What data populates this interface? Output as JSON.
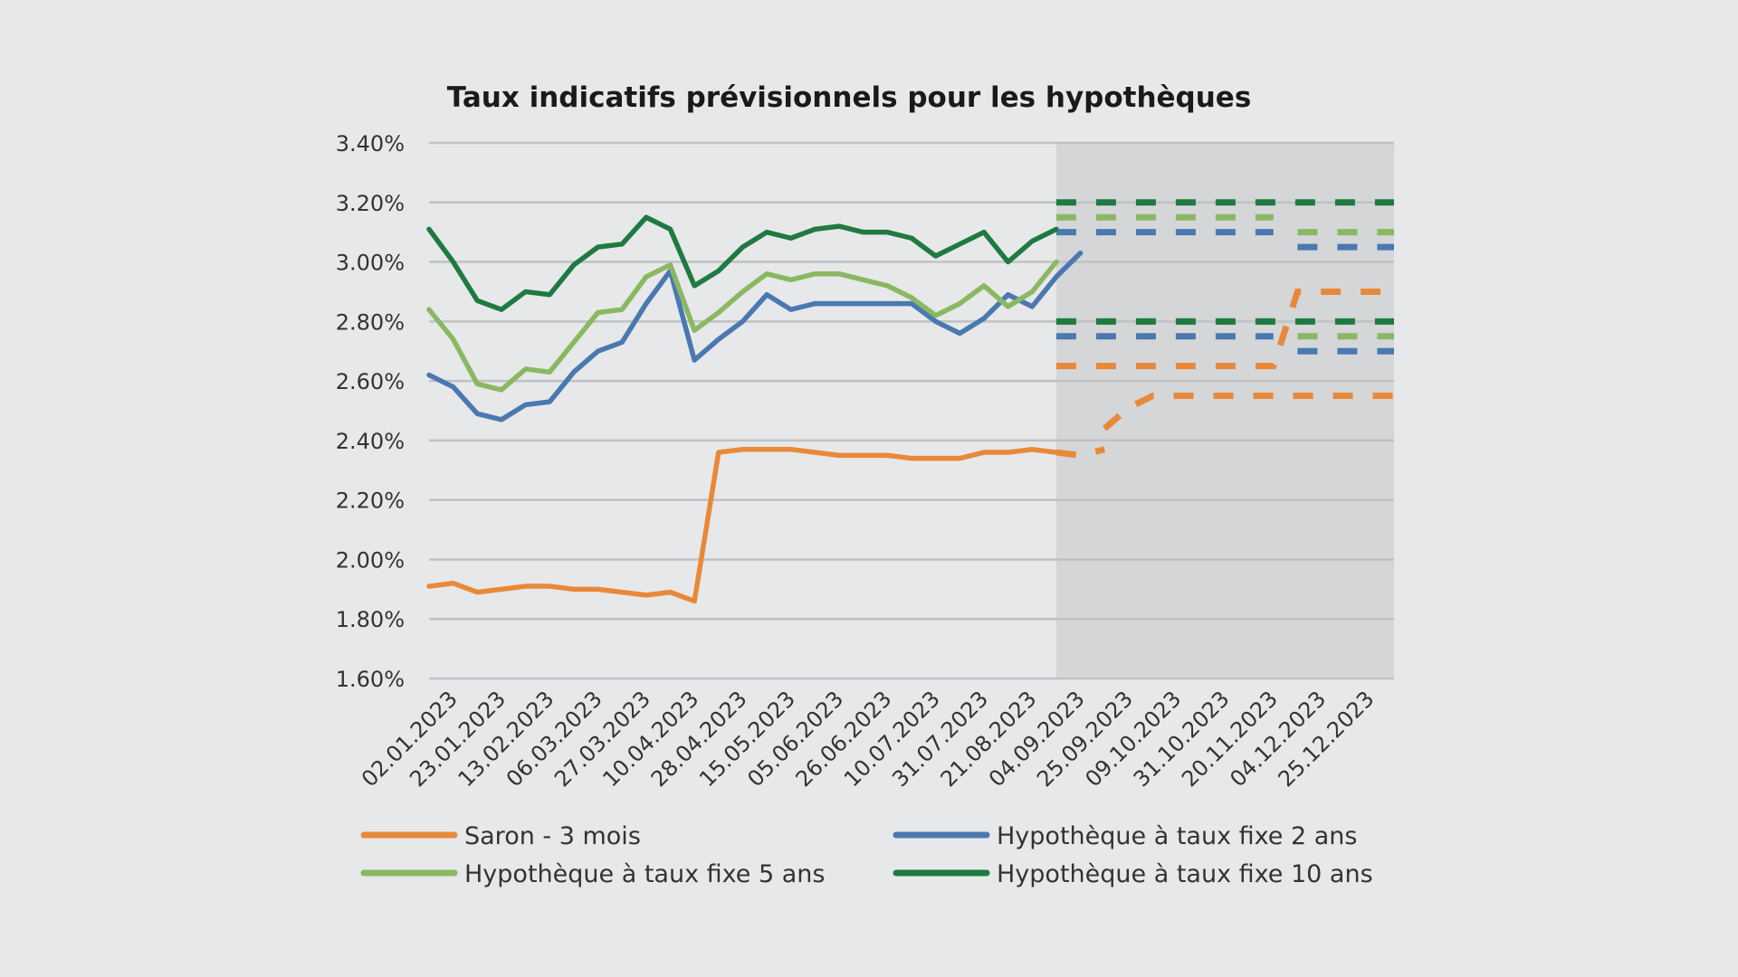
{
  "chart_data": {
    "type": "line",
    "title": "Taux indicatifs prévisionnels pour les hypothèques",
    "xlabel": "",
    "ylabel": "",
    "ylim": [
      1.6,
      3.4
    ],
    "y_ticks": [
      "3.40%",
      "3.20%",
      "3.00%",
      "2.80%",
      "2.60%",
      "2.40%",
      "2.20%",
      "2.00%",
      "1.80%",
      "1.60%"
    ],
    "y_tick_values": [
      3.4,
      3.2,
      3.0,
      2.8,
      2.6,
      2.4,
      2.2,
      2.0,
      1.8,
      1.6
    ],
    "x_ticks": [
      "02.01.2023",
      "23.01.2023",
      "13.02.2023",
      "06.03.2023",
      "27.03.2023",
      "10.04.2023",
      "28.04.2023",
      "15.05.2023",
      "05.06.2023",
      "26.06.2023",
      "10.07.2023",
      "31.07.2023",
      "21.08.2023",
      "04.09.2023",
      "25.09.2023",
      "09.10.2023",
      "31.10.2023",
      "20.11.2023",
      "04.12.2023",
      "25.12.2023"
    ],
    "x_range": [
      0,
      40
    ],
    "forecast_start_index": 20,
    "grid": true,
    "legend_position": "bottom",
    "series": [
      {
        "name": "Saron - 3 mois",
        "color": "#e8893a",
        "values": [
          [
            0,
            1.91
          ],
          [
            1,
            1.92
          ],
          [
            2,
            1.89
          ],
          [
            3,
            1.9
          ],
          [
            4,
            1.91
          ],
          [
            5,
            1.91
          ],
          [
            6,
            1.9
          ],
          [
            7,
            1.9
          ],
          [
            8,
            1.89
          ],
          [
            9,
            1.88
          ],
          [
            10,
            1.89
          ],
          [
            11,
            1.86
          ],
          [
            12,
            2.36
          ],
          [
            13,
            2.37
          ],
          [
            14,
            2.37
          ],
          [
            15,
            2.37
          ],
          [
            16,
            2.36
          ],
          [
            17,
            2.35
          ],
          [
            18,
            2.35
          ],
          [
            19,
            2.35
          ],
          [
            20,
            2.34
          ],
          [
            21,
            2.34
          ],
          [
            22,
            2.34
          ],
          [
            23,
            2.36
          ],
          [
            24,
            2.36
          ],
          [
            25,
            2.37
          ],
          [
            26,
            2.36
          ]
        ],
        "forecast": [
          [
            [
              26,
              2.36
            ],
            [
              27,
              2.35
            ],
            [
              28,
              2.37
            ]
          ],
          [
            [
              28,
              2.44
            ],
            [
              29,
              2.51
            ],
            [
              30,
              2.55
            ],
            [
              40,
              2.55
            ]
          ],
          [
            [
              26,
              2.65
            ],
            [
              35,
              2.65
            ],
            [
              36,
              2.9
            ],
            [
              40,
              2.9
            ]
          ]
        ]
      },
      {
        "name": "Hypothèque à taux fixe 2 ans",
        "color": "#4a78b0",
        "values": [
          [
            0,
            2.62
          ],
          [
            1,
            2.58
          ],
          [
            2,
            2.49
          ],
          [
            3,
            2.47
          ],
          [
            4,
            2.52
          ],
          [
            5,
            2.53
          ],
          [
            6,
            2.63
          ],
          [
            7,
            2.7
          ],
          [
            8,
            2.73
          ],
          [
            9,
            2.86
          ],
          [
            10,
            2.97
          ],
          [
            11,
            2.67
          ],
          [
            12,
            2.74
          ],
          [
            13,
            2.8
          ],
          [
            14,
            2.89
          ],
          [
            15,
            2.84
          ],
          [
            16,
            2.86
          ],
          [
            17,
            2.86
          ],
          [
            18,
            2.86
          ],
          [
            19,
            2.86
          ],
          [
            20,
            2.86
          ],
          [
            21,
            2.8
          ],
          [
            22,
            2.76
          ],
          [
            23,
            2.81
          ],
          [
            24,
            2.89
          ],
          [
            25,
            2.85
          ],
          [
            26,
            2.95
          ],
          [
            27,
            3.03
          ]
        ],
        "forecast": [
          [
            [
              26,
              3.1
            ],
            [
              35,
              3.1
            ]
          ],
          [
            [
              36,
              3.05
            ],
            [
              40,
              3.05
            ]
          ],
          [
            [
              26,
              2.75
            ],
            [
              35,
              2.75
            ]
          ],
          [
            [
              36,
              2.7
            ],
            [
              40,
              2.7
            ]
          ]
        ]
      },
      {
        "name": "Hypothèque à taux fixe 5 ans",
        "color": "#8ab862",
        "values": [
          [
            0,
            2.84
          ],
          [
            1,
            2.74
          ],
          [
            2,
            2.59
          ],
          [
            3,
            2.57
          ],
          [
            4,
            2.64
          ],
          [
            5,
            2.63
          ],
          [
            6,
            2.73
          ],
          [
            7,
            2.83
          ],
          [
            8,
            2.84
          ],
          [
            9,
            2.95
          ],
          [
            10,
            2.99
          ],
          [
            11,
            2.77
          ],
          [
            12,
            2.83
          ],
          [
            13,
            2.9
          ],
          [
            14,
            2.96
          ],
          [
            15,
            2.94
          ],
          [
            16,
            2.96
          ],
          [
            17,
            2.96
          ],
          [
            18,
            2.94
          ],
          [
            19,
            2.92
          ],
          [
            20,
            2.88
          ],
          [
            21,
            2.82
          ],
          [
            22,
            2.86
          ],
          [
            23,
            2.92
          ],
          [
            24,
            2.85
          ],
          [
            25,
            2.9
          ],
          [
            26,
            3.0
          ]
        ],
        "forecast": [
          [
            [
              26,
              3.15
            ],
            [
              35,
              3.15
            ]
          ],
          [
            [
              36,
              3.1
            ],
            [
              40,
              3.1
            ]
          ],
          [
            [
              26,
              2.8
            ],
            [
              35,
              2.8
            ]
          ],
          [
            [
              36,
              2.75
            ],
            [
              40,
              2.75
            ]
          ]
        ]
      },
      {
        "name": "Hypothèque à taux fixe 10 ans",
        "color": "#1f7a42",
        "values": [
          [
            0,
            3.11
          ],
          [
            1,
            3.0
          ],
          [
            2,
            2.87
          ],
          [
            3,
            2.84
          ],
          [
            4,
            2.9
          ],
          [
            5,
            2.89
          ],
          [
            6,
            2.99
          ],
          [
            7,
            3.05
          ],
          [
            8,
            3.06
          ],
          [
            9,
            3.15
          ],
          [
            10,
            3.11
          ],
          [
            11,
            2.92
          ],
          [
            12,
            2.97
          ],
          [
            13,
            3.05
          ],
          [
            14,
            3.1
          ],
          [
            15,
            3.08
          ],
          [
            16,
            3.11
          ],
          [
            17,
            3.12
          ],
          [
            18,
            3.1
          ],
          [
            19,
            3.1
          ],
          [
            20,
            3.08
          ],
          [
            21,
            3.02
          ],
          [
            22,
            3.06
          ],
          [
            23,
            3.1
          ],
          [
            24,
            3.0
          ],
          [
            25,
            3.07
          ],
          [
            26,
            3.11
          ]
        ],
        "forecast": [
          [
            [
              26,
              3.2
            ],
            [
              40,
              3.2
            ]
          ],
          [
            [
              26,
              2.8
            ],
            [
              40,
              2.8
            ]
          ]
        ]
      }
    ]
  }
}
